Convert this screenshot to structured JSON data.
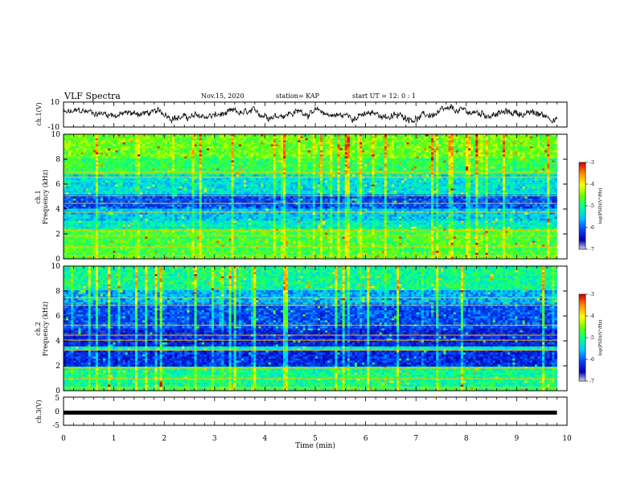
{
  "header": {
    "title": "VLF Spectra",
    "date": "Nov.15, 2020",
    "station": "station= KAP",
    "start_ut": "start UT =   12: 0  : 1"
  },
  "colors": {
    "waveform": "#000000",
    "colormap": [
      "#ffffff",
      "#0000b4",
      "#0046ff",
      "#00c8ff",
      "#00ff96",
      "#64ff00",
      "#ffff00",
      "#ff9600",
      "#dc0000"
    ]
  },
  "chart_data": [
    {
      "type": "line",
      "name": "ch1-waveform",
      "ylabel": "ch.1(V)",
      "ylim": [
        -10,
        10
      ],
      "yticks": [
        "10",
        "-10"
      ],
      "xlim": [
        0,
        10
      ],
      "note_values": "continuous noisy waveform roughly centred near 0 V spanning about 0–9.8 min"
    },
    {
      "type": "heatmap",
      "name": "ch1-spectrogram",
      "ylabel": "ch.1\nFrequency (kHz)",
      "ylim": [
        0,
        10
      ],
      "yticks": [
        "0",
        "2",
        "4",
        "6",
        "8",
        "10"
      ],
      "xlim": [
        0,
        10
      ],
      "data_extent_min": 9.8,
      "colorbar": {
        "label": "log(PSD)(V²/Hz)",
        "range": [
          -7,
          -3
        ],
        "ticks": [
          "-3",
          "-4",
          "-5",
          "-6",
          "-7"
        ]
      }
    },
    {
      "type": "heatmap",
      "name": "ch2-spectrogram",
      "ylabel": "ch.2\nFrequency (kHz)",
      "ylim": [
        0,
        10
      ],
      "yticks": [
        "0",
        "2",
        "4",
        "6",
        "8",
        "10"
      ],
      "xlim": [
        0,
        10
      ],
      "data_extent_min": 9.8,
      "colorbar": {
        "label": "log(PSD)(V²/Hz)",
        "range": [
          -7,
          -3
        ],
        "ticks": [
          "-3",
          "-4",
          "-5",
          "-6",
          "-7"
        ]
      }
    },
    {
      "type": "line",
      "name": "ch3-waveform",
      "ylabel": "ch.3(V)",
      "ylim": [
        -5,
        5
      ],
      "yticks": [
        "5",
        "0",
        "-5"
      ],
      "xlim": [
        0,
        10
      ],
      "constant_value": -0.5
    }
  ],
  "xaxis": {
    "label": "Time (min)",
    "ticks": [
      "0",
      "1",
      "2",
      "3",
      "4",
      "5",
      "6",
      "7",
      "8",
      "9",
      "10"
    ]
  }
}
